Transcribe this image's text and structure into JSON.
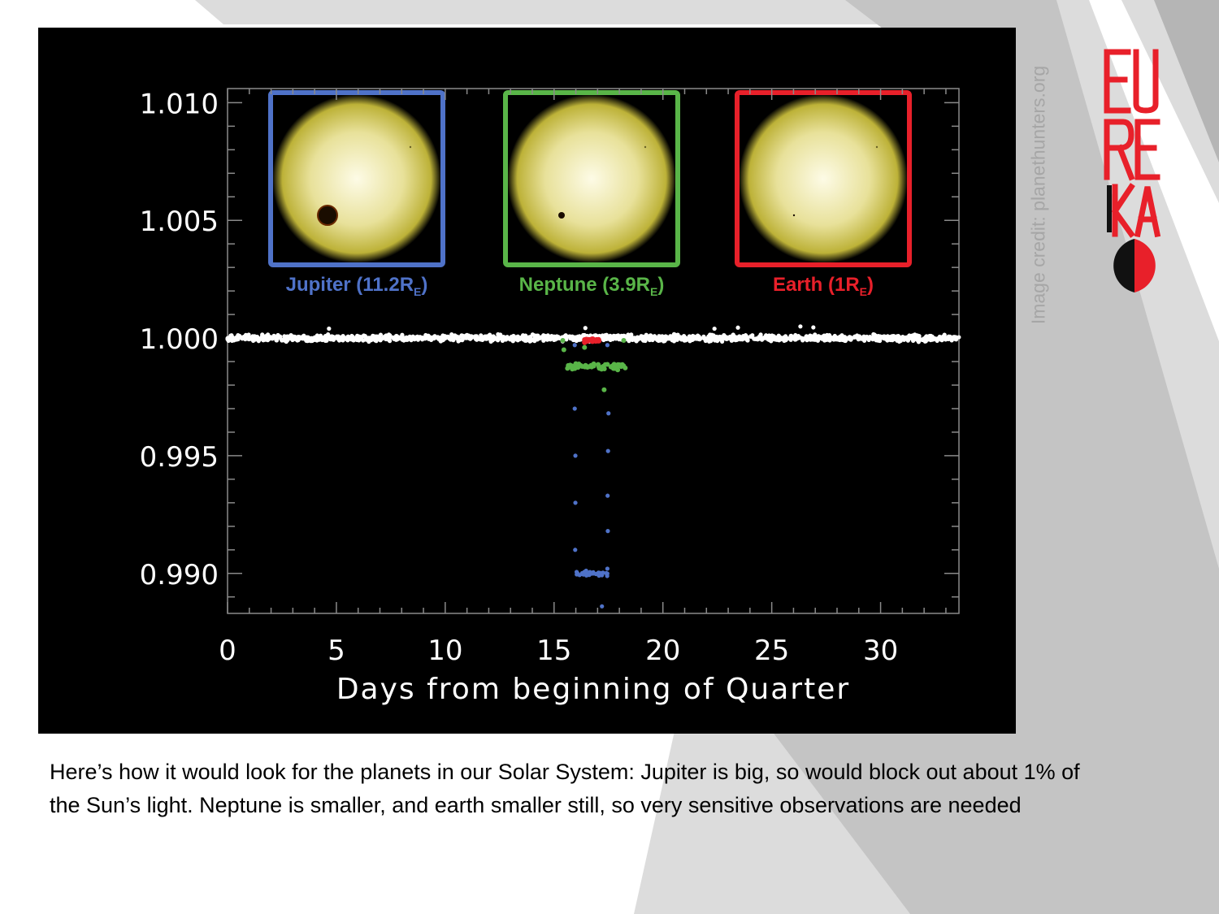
{
  "slide": {
    "caption": "Here’s how it would look for the  planets in our Solar System: Jupiter is big, so would block out about 1% of the Sun’s light. Neptune is smaller, and earth smaller still, so very sensitive observations are needed",
    "credit": "Image credit:  planethunters.org",
    "logo_text": "EUREKA",
    "logo_colors": {
      "red": "#e8202a",
      "black": "#111111"
    }
  },
  "chart_data": {
    "type": "scatter",
    "title": "",
    "xlabel": "Days from beginning of Quarter",
    "ylabel": "",
    "xlim": [
      0,
      33.6
    ],
    "ylim": [
      0.9883,
      1.0106
    ],
    "x_ticks": [
      "0",
      "5",
      "10",
      "15",
      "20",
      "25",
      "30"
    ],
    "y_ticks": [
      "0.990",
      "0.995",
      "1.000",
      "1.005",
      "1.010"
    ],
    "baseline": {
      "color": "#ffffff",
      "value": 1.0,
      "x_range": [
        0,
        33.6
      ]
    },
    "transit_window": [
      15.9,
      17.5
    ],
    "series": [
      {
        "name": "Jupiter (11.2R",
        "subscript": "E",
        "suffix": ")",
        "color": "#4f72c8",
        "depth": 0.01,
        "radius_re": 11.2
      },
      {
        "name": "Neptune (3.9R",
        "subscript": "E",
        "suffix": ")",
        "color": "#59b548",
        "depth": 0.0012,
        "radius_re": 3.9
      },
      {
        "name": "Earth (1R",
        "subscript": "E",
        "suffix": ")",
        "color": "#e8202a",
        "depth": 0.0001,
        "radius_re": 1
      }
    ],
    "insets": {
      "star_color": "#e8e19a",
      "frame_colors": [
        "#4f72c8",
        "#59b548",
        "#e8202a"
      ]
    }
  }
}
